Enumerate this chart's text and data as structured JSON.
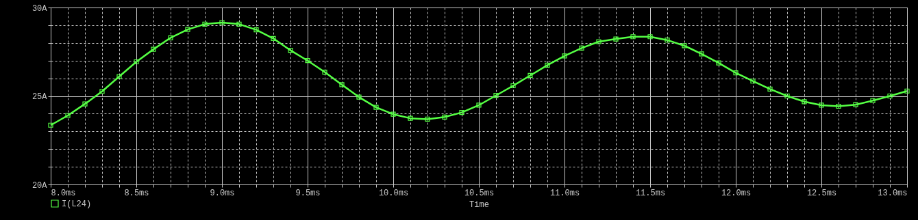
{
  "chart_data": {
    "type": "line",
    "xlabel": "Time",
    "x": [
      8.0,
      8.1,
      8.2,
      8.3,
      8.4,
      8.5,
      8.6,
      8.7,
      8.8,
      8.9,
      9.0,
      9.1,
      9.2,
      9.3,
      9.4,
      9.5,
      9.6,
      9.7,
      9.8,
      9.9,
      10.0,
      10.1,
      10.2,
      10.3,
      10.4,
      10.5,
      10.6,
      10.7,
      10.8,
      10.9,
      11.0,
      11.1,
      11.2,
      11.3,
      11.4,
      11.5,
      11.6,
      11.7,
      11.8,
      11.9,
      12.0,
      12.1,
      12.2,
      12.3,
      12.4,
      12.5,
      12.6,
      12.7,
      12.8,
      12.9,
      13.0
    ],
    "series": [
      {
        "name": "I(L24)",
        "color": "#55ff44",
        "values": [
          23.35,
          23.9,
          24.55,
          25.26,
          26.1,
          26.93,
          27.64,
          28.29,
          28.76,
          29.06,
          29.15,
          29.06,
          28.74,
          28.25,
          27.58,
          27.0,
          26.35,
          25.64,
          24.94,
          24.36,
          23.97,
          23.74,
          23.69,
          23.81,
          24.07,
          24.48,
          25.03,
          25.58,
          26.16,
          26.74,
          27.26,
          27.71,
          28.07,
          28.22,
          28.35,
          28.35,
          28.16,
          27.84,
          27.38,
          26.87,
          26.31,
          25.84,
          25.39,
          25.0,
          24.68,
          24.48,
          24.42,
          24.51,
          24.74,
          25.0,
          25.28
        ]
      }
    ],
    "xlim": [
      8.0,
      13.0
    ],
    "xticks": [
      {
        "value": 8.0,
        "label": "8.0ms"
      },
      {
        "value": 8.1,
        "label": null
      },
      {
        "value": 8.2,
        "label": null
      },
      {
        "value": 8.3,
        "label": null
      },
      {
        "value": 8.4,
        "label": null
      },
      {
        "value": 8.5,
        "label": "8.5ms"
      },
      {
        "value": 8.6,
        "label": null
      },
      {
        "value": 8.7,
        "label": null
      },
      {
        "value": 8.8,
        "label": null
      },
      {
        "value": 8.9,
        "label": null
      },
      {
        "value": 9.0,
        "label": "9.0ms"
      },
      {
        "value": 9.1,
        "label": null
      },
      {
        "value": 9.2,
        "label": null
      },
      {
        "value": 9.3,
        "label": null
      },
      {
        "value": 9.4,
        "label": null
      },
      {
        "value": 9.5,
        "label": "9.5ms"
      },
      {
        "value": 9.6,
        "label": null
      },
      {
        "value": 9.7,
        "label": null
      },
      {
        "value": 9.8,
        "label": null
      },
      {
        "value": 9.9,
        "label": null
      },
      {
        "value": 10.0,
        "label": "10.0ms"
      },
      {
        "value": 10.1,
        "label": null
      },
      {
        "value": 10.2,
        "label": null
      },
      {
        "value": 10.3,
        "label": null
      },
      {
        "value": 10.4,
        "label": null
      },
      {
        "value": 10.5,
        "label": "10.5ms"
      },
      {
        "value": 10.6,
        "label": null
      },
      {
        "value": 10.7,
        "label": null
      },
      {
        "value": 10.8,
        "label": null
      },
      {
        "value": 10.9,
        "label": null
      },
      {
        "value": 11.0,
        "label": "11.0ms"
      },
      {
        "value": 11.1,
        "label": null
      },
      {
        "value": 11.2,
        "label": null
      },
      {
        "value": 11.3,
        "label": null
      },
      {
        "value": 11.4,
        "label": null
      },
      {
        "value": 11.5,
        "label": "11.5ms"
      },
      {
        "value": 11.6,
        "label": null
      },
      {
        "value": 11.7,
        "label": null
      },
      {
        "value": 11.8,
        "label": null
      },
      {
        "value": 11.9,
        "label": null
      },
      {
        "value": 12.0,
        "label": "12.0ms"
      },
      {
        "value": 12.1,
        "label": null
      },
      {
        "value": 12.2,
        "label": null
      },
      {
        "value": 12.3,
        "label": null
      },
      {
        "value": 12.4,
        "label": null
      },
      {
        "value": 12.5,
        "label": "12.5ms"
      },
      {
        "value": 12.6,
        "label": null
      },
      {
        "value": 12.7,
        "label": null
      },
      {
        "value": 12.8,
        "label": null
      },
      {
        "value": 12.9,
        "label": null
      },
      {
        "value": 13.0,
        "label": "13.0ms"
      }
    ],
    "ylim": [
      20,
      30
    ],
    "yticks": [
      {
        "value": 20,
        "label": "20A"
      },
      {
        "value": 21,
        "label": null
      },
      {
        "value": 22,
        "label": null
      },
      {
        "value": 23,
        "label": null
      },
      {
        "value": 24,
        "label": null
      },
      {
        "value": 25,
        "label": "25A"
      },
      {
        "value": 26,
        "label": null
      },
      {
        "value": 27,
        "label": null
      },
      {
        "value": 28,
        "label": null
      },
      {
        "value": 29,
        "label": null
      },
      {
        "value": 30,
        "label": "30A"
      }
    ],
    "grid": true,
    "legend": "bottom left",
    "marker": "square",
    "line_style": "solid"
  }
}
